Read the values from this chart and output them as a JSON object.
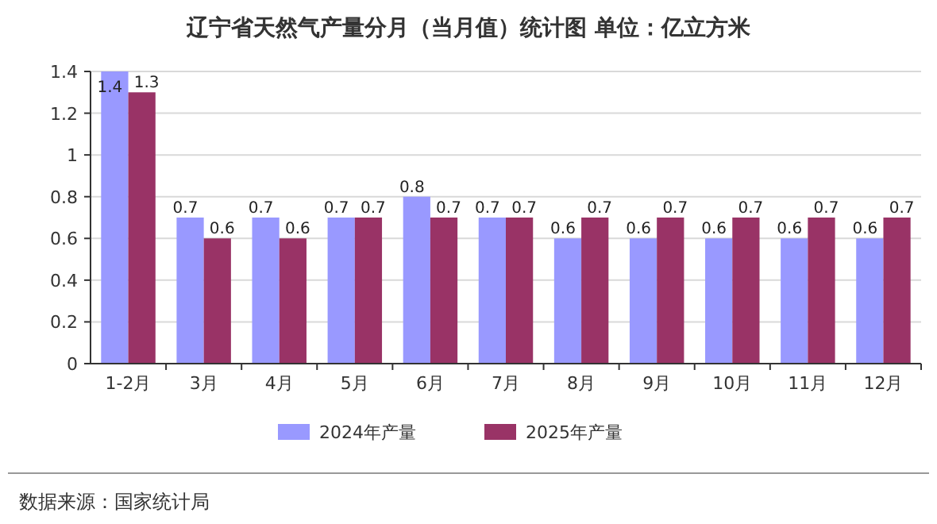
{
  "chart_data": {
    "type": "bar",
    "title": "辽宁省天然气产量分月（当月值）统计图 单位：亿立方米",
    "categories": [
      "1-2月",
      "3月",
      "4月",
      "5月",
      "6月",
      "7月",
      "8月",
      "9月",
      "10月",
      "11月",
      "12月"
    ],
    "series": [
      {
        "name": "2024年产量",
        "color": "#9999ff",
        "values": [
          1.4,
          0.7,
          0.7,
          0.7,
          0.8,
          0.7,
          0.6,
          0.6,
          0.6,
          0.6,
          0.6
        ]
      },
      {
        "name": "2025年产量",
        "color": "#993366",
        "values": [
          1.3,
          0.6,
          0.6,
          0.7,
          0.7,
          0.7,
          0.7,
          0.7,
          0.7,
          0.7,
          0.7
        ]
      }
    ],
    "ylim": [
      0,
      1.4
    ],
    "yticks": [
      0,
      0.2,
      0.4,
      0.6,
      0.8,
      1,
      1.2,
      1.4
    ],
    "grid": "y",
    "legend": "bottom",
    "data_labels": true,
    "annotations": [
      "数据来源：国家统计局"
    ]
  }
}
